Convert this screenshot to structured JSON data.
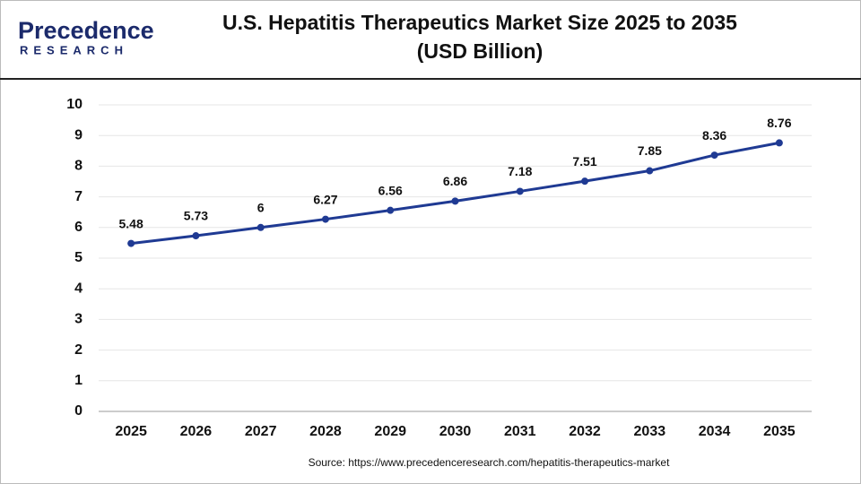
{
  "logo": {
    "name": "Precedence",
    "tagline": "RESEARCH"
  },
  "chart_data": {
    "type": "line",
    "title": "U.S. Hepatitis Therapeutics Market Size 2025 to 2035",
    "subtitle": "(USD Billion)",
    "categories": [
      "2025",
      "2026",
      "2027",
      "2028",
      "2029",
      "2030",
      "2031",
      "2032",
      "2033",
      "2034",
      "2035"
    ],
    "values": [
      5.48,
      5.73,
      6,
      6.27,
      6.56,
      6.86,
      7.18,
      7.51,
      7.85,
      8.36,
      8.76
    ],
    "color": "#1f3a93",
    "ylim": [
      0,
      10
    ],
    "yticks": [
      0,
      1,
      2,
      3,
      4,
      5,
      6,
      7,
      8,
      9,
      10
    ],
    "grid": true,
    "source": "Source: https://www.precedenceresearch.com/hepatitis-therapeutics-market"
  }
}
